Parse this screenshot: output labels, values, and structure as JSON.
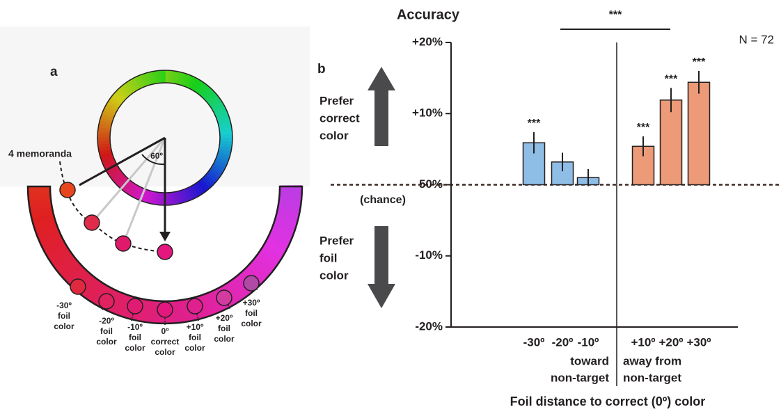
{
  "panel_a": {
    "label": "a",
    "memoranda_label": "4 memoranda",
    "angle_label": "60º",
    "foil_labels": [
      [
        "-30º",
        "foil",
        "color"
      ],
      [
        "-20º",
        "foil",
        "color"
      ],
      [
        "-10º",
        "foil",
        "color"
      ],
      [
        "0º",
        "correct",
        "color"
      ],
      [
        "+10º",
        "foil",
        "color"
      ],
      [
        "+20º",
        "foil",
        "color"
      ],
      [
        "+30º",
        "foil",
        "color"
      ]
    ]
  },
  "chart_data": {
    "type": "bar",
    "panel_label": "b",
    "title": "Accuracy",
    "n_label": "N = 72",
    "comparison_label": "***",
    "categories": [
      "-30º",
      "-20º",
      "-10º",
      "+10º",
      "+20º",
      "+30º"
    ],
    "values": [
      5.9,
      3.2,
      1.0,
      5.4,
      11.9,
      14.4
    ],
    "errors": [
      1.5,
      1.3,
      1.2,
      1.4,
      1.7,
      1.6
    ],
    "significance": [
      "***",
      null,
      null,
      "***",
      "***",
      "***"
    ],
    "colors": [
      "#8ebde6",
      "#8ebde6",
      "#8ebde6",
      "#ec9a78",
      "#ec9a78",
      "#ec9a78"
    ],
    "group_labels": [
      [
        "toward",
        "non-target"
      ],
      [
        "away from",
        "non-target"
      ]
    ],
    "up_label": [
      "Prefer",
      "correct",
      "color"
    ],
    "down_label": [
      "Prefer",
      "foil",
      "color"
    ],
    "chance_label": "(chance)",
    "xlabel": "Foil distance to correct (0º) color",
    "ylim": [
      -20,
      20
    ],
    "yticks": [
      {
        "value": 20,
        "label": "+20%"
      },
      {
        "value": 10,
        "label": "+10%"
      },
      {
        "value": 0,
        "label": "50%"
      },
      {
        "value": -10,
        "label": "-10%"
      },
      {
        "value": -20,
        "label": "-20%"
      }
    ]
  }
}
